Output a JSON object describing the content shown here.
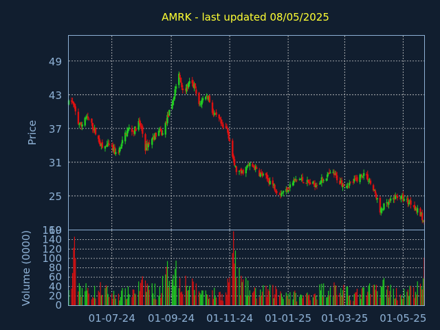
{
  "chart_data": {
    "type": "candlestick",
    "title": "AMRK - last updated 08/05/2025",
    "colors": {
      "background": "#111e2f",
      "text_title": "#ffff33",
      "text_axis": "#8fb2d6",
      "frame": "#8fb2d6",
      "grid": "#d0d0d0",
      "up": "#22cc22",
      "down": "#dd1111"
    },
    "grid": true,
    "price_panel": {
      "ylabel": "Price",
      "ylim": [
        19,
        53.5
      ],
      "yticks": [
        "49",
        "43",
        "37",
        "31",
        "25",
        "19"
      ]
    },
    "volume_panel": {
      "ylabel": "Volume (0000)",
      "ylim": [
        0,
        160
      ],
      "yticks": [
        "160",
        "140",
        "120",
        "100",
        "80",
        "60",
        "40",
        "20",
        "0"
      ]
    },
    "x_axis": {
      "range": [
        "2024-05-17",
        "2025-05-23"
      ],
      "ticks": [
        {
          "date": "2024-07-01",
          "label": "01-07-24"
        },
        {
          "date": "2024-09-01",
          "label": "01-09-24"
        },
        {
          "date": "2024-11-01",
          "label": "01-11-24"
        },
        {
          "date": "2025-01-01",
          "label": "01-01-25"
        },
        {
          "date": "2025-03-01",
          "label": "01-03-25"
        },
        {
          "date": "2025-05-01",
          "label": "01-05-25"
        }
      ]
    },
    "price_anchors": [
      [
        "2024-05-17",
        41.5
      ],
      [
        "2024-05-20",
        42.0
      ],
      [
        "2024-05-23",
        40.5
      ],
      [
        "2024-05-27",
        38.0
      ],
      [
        "2024-05-30",
        37.5
      ],
      [
        "2024-06-03",
        39.0
      ],
      [
        "2024-06-07",
        38.5
      ],
      [
        "2024-06-12",
        37.0
      ],
      [
        "2024-06-17",
        35.0
      ],
      [
        "2024-06-21",
        33.5
      ],
      [
        "2024-06-26",
        34.0
      ],
      [
        "2024-07-01",
        33.5
      ],
      [
        "2024-07-05",
        32.5
      ],
      [
        "2024-07-10",
        33.5
      ],
      [
        "2024-07-15",
        36.0
      ],
      [
        "2024-07-19",
        37.0
      ],
      [
        "2024-07-24",
        36.5
      ],
      [
        "2024-07-29",
        38.0
      ],
      [
        "2024-08-01",
        37.0
      ],
      [
        "2024-08-05",
        33.5
      ],
      [
        "2024-08-09",
        34.5
      ],
      [
        "2024-08-14",
        35.5
      ],
      [
        "2024-08-19",
        36.5
      ],
      [
        "2024-08-23",
        36.0
      ],
      [
        "2024-08-28",
        39.0
      ],
      [
        "2024-09-02",
        41.0
      ],
      [
        "2024-09-05",
        44.0
      ],
      [
        "2024-09-09",
        46.5
      ],
      [
        "2024-09-12",
        44.5
      ],
      [
        "2024-09-16",
        44.0
      ],
      [
        "2024-09-20",
        45.0
      ],
      [
        "2024-09-25",
        44.5
      ],
      [
        "2024-09-30",
        41.0
      ],
      [
        "2024-10-03",
        42.0
      ],
      [
        "2024-10-07",
        43.0
      ],
      [
        "2024-10-10",
        42.5
      ],
      [
        "2024-10-15",
        39.5
      ],
      [
        "2024-10-21",
        38.5
      ],
      [
        "2024-10-25",
        37.0
      ],
      [
        "2024-10-29",
        37.0
      ],
      [
        "2024-11-01",
        35.0
      ],
      [
        "2024-11-05",
        31.0
      ],
      [
        "2024-11-08",
        29.5
      ],
      [
        "2024-11-13",
        29.0
      ],
      [
        "2024-11-18",
        30.0
      ],
      [
        "2024-11-22",
        30.5
      ],
      [
        "2024-11-27",
        30.0
      ],
      [
        "2024-12-02",
        29.0
      ],
      [
        "2024-12-06",
        28.5
      ],
      [
        "2024-12-11",
        28.0
      ],
      [
        "2024-12-16",
        27.0
      ],
      [
        "2024-12-20",
        26.0
      ],
      [
        "2024-12-24",
        25.5
      ],
      [
        "2024-12-30",
        26.0
      ],
      [
        "2025-01-06",
        27.5
      ],
      [
        "2025-01-13",
        28.0
      ],
      [
        "2025-01-20",
        27.5
      ],
      [
        "2025-01-27",
        27.0
      ],
      [
        "2025-02-03",
        27.5
      ],
      [
        "2025-02-10",
        28.5
      ],
      [
        "2025-02-17",
        29.0
      ],
      [
        "2025-02-24",
        27.5
      ],
      [
        "2025-03-03",
        27.0
      ],
      [
        "2025-03-10",
        27.5
      ],
      [
        "2025-03-17",
        28.5
      ],
      [
        "2025-03-21",
        29.0
      ],
      [
        "2025-03-26",
        28.0
      ],
      [
        "2025-03-31",
        26.0
      ],
      [
        "2025-04-03",
        25.0
      ],
      [
        "2025-04-07",
        22.0
      ],
      [
        "2025-04-10",
        23.0
      ],
      [
        "2025-04-15",
        23.5
      ],
      [
        "2025-04-21",
        24.5
      ],
      [
        "2025-04-25",
        25.0
      ],
      [
        "2025-05-01",
        24.5
      ],
      [
        "2025-05-06",
        24.0
      ],
      [
        "2025-05-12",
        23.5
      ],
      [
        "2025-05-15",
        22.5
      ],
      [
        "2025-05-20",
        21.5
      ],
      [
        "2025-05-23",
        20.0
      ]
    ],
    "volume_anchors": [
      [
        "2024-05-17",
        30
      ],
      [
        "2024-05-20",
        40
      ],
      [
        "2024-05-22",
        150
      ],
      [
        "2024-05-24",
        80
      ],
      [
        "2024-05-29",
        45
      ],
      [
        "2024-06-10",
        30
      ],
      [
        "2024-06-20",
        40
      ],
      [
        "2024-07-02",
        25
      ],
      [
        "2024-07-18",
        30
      ],
      [
        "2024-08-05",
        50
      ],
      [
        "2024-08-19",
        30
      ],
      [
        "2024-09-02",
        100
      ],
      [
        "2024-09-05",
        90
      ],
      [
        "2024-09-10",
        65
      ],
      [
        "2024-09-25",
        40
      ],
      [
        "2024-10-10",
        30
      ],
      [
        "2024-10-28",
        25
      ],
      [
        "2024-11-06",
        140
      ],
      [
        "2024-11-08",
        90
      ],
      [
        "2024-11-12",
        55
      ],
      [
        "2024-11-25",
        30
      ],
      [
        "2024-12-20",
        35
      ],
      [
        "2025-01-15",
        20
      ],
      [
        "2025-02-14",
        45
      ],
      [
        "2025-03-10",
        25
      ],
      [
        "2025-04-04",
        40
      ],
      [
        "2025-04-09",
        50
      ],
      [
        "2025-04-28",
        25
      ],
      [
        "2025-05-22",
        45
      ],
      [
        "2025-05-23",
        100
      ]
    ]
  }
}
